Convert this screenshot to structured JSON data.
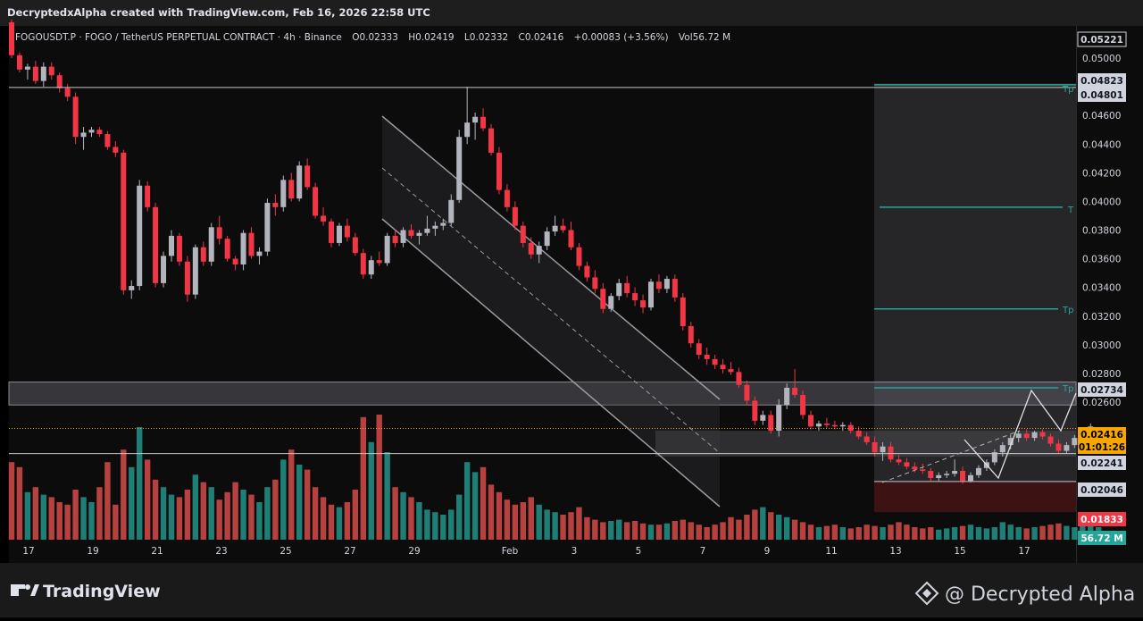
{
  "header": {
    "attribution": "DecryptedxAlpha created with TradingView.com, Feb 16, 2026 22:58 UTC"
  },
  "legend": {
    "symbol": "FOGOUSDT.P · FOGO / TetherUS PERPETUAL CONTRACT · 4h · Binance",
    "open": "O0.02333",
    "high": "H0.02419",
    "low": "L0.02332",
    "close": "C0.02416",
    "change": "+0.00083 (+3.56%)",
    "volume": "Vol56.72 M"
  },
  "footer": {
    "brand": "TradingView",
    "watermark": "@ Decrypted Alpha"
  },
  "drawing_labels": {
    "tp1": "Tp",
    "tp2": "Tp",
    "tp3": "T",
    "tp4": "Tp"
  },
  "chart_data": {
    "type": "candlestick",
    "symbol": "FOGOUSDT.P",
    "interval": "4h",
    "exchange": "Binance",
    "y_axis_ticks": [
      "0.05000",
      "0.04600",
      "0.04400",
      "0.04200",
      "0.04000",
      "0.03800",
      "0.03600",
      "0.03400",
      "0.03200",
      "0.03000",
      "0.02800",
      "0.02600"
    ],
    "x_axis_ticks": [
      "17",
      "19",
      "21",
      "23",
      "25",
      "27",
      "29",
      "Feb",
      "3",
      "5",
      "7",
      "9",
      "11",
      "13",
      "15",
      "17"
    ],
    "price_tags": [
      {
        "label": "0.05221",
        "style": "outline"
      },
      {
        "label": "0.04823",
        "style": "light"
      },
      {
        "label": "0.04801",
        "style": "light"
      },
      {
        "label": "0.02734",
        "style": "light"
      },
      {
        "label": "0.02416",
        "style": "current",
        "countdown": "01:01:26",
        "color": "#f7a600"
      },
      {
        "label": "0.02241",
        "style": "light"
      },
      {
        "label": "0.02046",
        "style": "light"
      },
      {
        "label": "0.01833",
        "style": "red",
        "color": "#f23645"
      },
      {
        "label": "56.72 M",
        "style": "volume",
        "color": "#26a69a"
      }
    ],
    "colors": {
      "up": "#b2b5be",
      "down": "#f23645",
      "vol_up": "#26a69a",
      "vol_down": "#ef5350",
      "target": "#26a69a"
    },
    "zones": [
      {
        "name": "resistance-zone",
        "from": 0.0258,
        "to": 0.0274
      },
      {
        "name": "support-zone",
        "from": 0.0222,
        "to": 0.024
      },
      {
        "name": "target-box",
        "from": 0.0204,
        "to": 0.04823
      },
      {
        "name": "stop-box",
        "from": 0.01833,
        "to": 0.02046
      }
    ],
    "levels": [
      {
        "name": "high-line",
        "price": 0.04801
      },
      {
        "name": "tp-level-1",
        "price": 0.04801
      },
      {
        "name": "tp-level-2",
        "price": 0.0396
      },
      {
        "name": "tp-level-3",
        "price": 0.0325
      },
      {
        "name": "tp-level-4",
        "price": 0.027
      },
      {
        "name": "current-price",
        "price": 0.02416
      },
      {
        "name": "support-line",
        "price": 0.02241
      },
      {
        "name": "entry-line",
        "price": 0.02046
      }
    ],
    "candles": [
      [
        0.0525,
        0.0527,
        0.05,
        0.0502
      ],
      [
        0.0502,
        0.0504,
        0.049,
        0.0492
      ],
      [
        0.0492,
        0.0496,
        0.0485,
        0.0494
      ],
      [
        0.0494,
        0.0498,
        0.0482,
        0.0484
      ],
      [
        0.0484,
        0.0497,
        0.048,
        0.0494
      ],
      [
        0.0494,
        0.0497,
        0.0485,
        0.0488
      ],
      [
        0.0488,
        0.049,
        0.0476,
        0.0479
      ],
      [
        0.0479,
        0.0482,
        0.047,
        0.0473
      ],
      [
        0.0473,
        0.0476,
        0.044,
        0.0445
      ],
      [
        0.0445,
        0.0452,
        0.0436,
        0.0448
      ],
      [
        0.0448,
        0.0452,
        0.0445,
        0.045
      ],
      [
        0.045,
        0.0452,
        0.0445,
        0.0447
      ],
      [
        0.0447,
        0.0449,
        0.0436,
        0.0438
      ],
      [
        0.0438,
        0.0442,
        0.0431,
        0.0434
      ],
      [
        0.0434,
        0.0436,
        0.0335,
        0.0338
      ],
      [
        0.0338,
        0.0345,
        0.0332,
        0.0341
      ],
      [
        0.0341,
        0.0415,
        0.0338,
        0.0411
      ],
      [
        0.0411,
        0.0414,
        0.0393,
        0.0396
      ],
      [
        0.0396,
        0.0399,
        0.034,
        0.0343
      ],
      [
        0.0343,
        0.0365,
        0.034,
        0.0362
      ],
      [
        0.0362,
        0.038,
        0.0358,
        0.0376
      ],
      [
        0.0376,
        0.0378,
        0.0355,
        0.0358
      ],
      [
        0.0358,
        0.0362,
        0.033,
        0.0335
      ],
      [
        0.0335,
        0.037,
        0.0332,
        0.0368
      ],
      [
        0.0368,
        0.0372,
        0.0355,
        0.0358
      ],
      [
        0.0358,
        0.0385,
        0.0355,
        0.0382
      ],
      [
        0.0382,
        0.039,
        0.037,
        0.0374
      ],
      [
        0.0374,
        0.0376,
        0.0358,
        0.036
      ],
      [
        0.036,
        0.0362,
        0.0352,
        0.0356
      ],
      [
        0.0356,
        0.038,
        0.0352,
        0.0378
      ],
      [
        0.0378,
        0.0382,
        0.036,
        0.0362
      ],
      [
        0.0362,
        0.0368,
        0.0356,
        0.0365
      ],
      [
        0.0365,
        0.0402,
        0.0362,
        0.0399
      ],
      [
        0.0399,
        0.0405,
        0.039,
        0.0396
      ],
      [
        0.0396,
        0.0418,
        0.0393,
        0.0415
      ],
      [
        0.0415,
        0.042,
        0.04,
        0.0402
      ],
      [
        0.0402,
        0.0428,
        0.04,
        0.0425
      ],
      [
        0.0425,
        0.043,
        0.0408,
        0.041
      ],
      [
        0.041,
        0.0413,
        0.0388,
        0.039
      ],
      [
        0.039,
        0.0396,
        0.0383,
        0.0386
      ],
      [
        0.0386,
        0.0388,
        0.0368,
        0.0371
      ],
      [
        0.0371,
        0.0385,
        0.0369,
        0.0383
      ],
      [
        0.0383,
        0.0388,
        0.0372,
        0.0375
      ],
      [
        0.0375,
        0.0378,
        0.0362,
        0.0364
      ],
      [
        0.0364,
        0.0367,
        0.0346,
        0.0349
      ],
      [
        0.0349,
        0.0362,
        0.0346,
        0.0359
      ],
      [
        0.0359,
        0.0365,
        0.0355,
        0.0357
      ],
      [
        0.0357,
        0.0378,
        0.0355,
        0.0376
      ],
      [
        0.0376,
        0.038,
        0.0368,
        0.0371
      ],
      [
        0.0371,
        0.0382,
        0.0368,
        0.038
      ],
      [
        0.038,
        0.0384,
        0.0374,
        0.0376
      ],
      [
        0.0376,
        0.038,
        0.037,
        0.0378
      ],
      [
        0.0378,
        0.039,
        0.0376,
        0.0381
      ],
      [
        0.0381,
        0.0386,
        0.0376,
        0.0383
      ],
      [
        0.0383,
        0.0388,
        0.038,
        0.0385
      ],
      [
        0.0385,
        0.0405,
        0.0383,
        0.0401
      ],
      [
        0.0401,
        0.045,
        0.0399,
        0.0445
      ],
      [
        0.0445,
        0.048,
        0.044,
        0.0455
      ],
      [
        0.0455,
        0.0462,
        0.0443,
        0.0459
      ],
      [
        0.0459,
        0.0465,
        0.0449,
        0.0451
      ],
      [
        0.0451,
        0.0454,
        0.0432,
        0.0434
      ],
      [
        0.0434,
        0.0438,
        0.0405,
        0.0408
      ],
      [
        0.0408,
        0.0412,
        0.0393,
        0.0396
      ],
      [
        0.0396,
        0.04,
        0.038,
        0.0383
      ],
      [
        0.0383,
        0.0386,
        0.0368,
        0.0371
      ],
      [
        0.0371,
        0.0375,
        0.036,
        0.0363
      ],
      [
        0.0363,
        0.0372,
        0.0357,
        0.0369
      ],
      [
        0.0369,
        0.0382,
        0.0366,
        0.0379
      ],
      [
        0.0379,
        0.039,
        0.0376,
        0.0383
      ],
      [
        0.0383,
        0.0388,
        0.0378,
        0.038
      ],
      [
        0.038,
        0.0386,
        0.0366,
        0.0368
      ],
      [
        0.0368,
        0.0371,
        0.0352,
        0.0355
      ],
      [
        0.0355,
        0.0358,
        0.0344,
        0.0347
      ],
      [
        0.0347,
        0.0352,
        0.0336,
        0.0339
      ],
      [
        0.0339,
        0.0343,
        0.0322,
        0.0325
      ],
      [
        0.0325,
        0.0336,
        0.0323,
        0.0334
      ],
      [
        0.0334,
        0.0346,
        0.0331,
        0.0343
      ],
      [
        0.0343,
        0.0348,
        0.0333,
        0.0336
      ],
      [
        0.0336,
        0.034,
        0.0327,
        0.0331
      ],
      [
        0.0331,
        0.0335,
        0.0322,
        0.0326
      ],
      [
        0.0326,
        0.0346,
        0.0324,
        0.0344
      ],
      [
        0.0344,
        0.0349,
        0.0336,
        0.0339
      ],
      [
        0.0339,
        0.0348,
        0.0336,
        0.0346
      ],
      [
        0.0346,
        0.0349,
        0.033,
        0.0333
      ],
      [
        0.0333,
        0.0336,
        0.031,
        0.0313
      ],
      [
        0.0313,
        0.0316,
        0.0298,
        0.0301
      ],
      [
        0.0301,
        0.0304,
        0.029,
        0.0293
      ],
      [
        0.0293,
        0.0298,
        0.0286,
        0.029
      ],
      [
        0.029,
        0.0293,
        0.0283,
        0.0286
      ],
      [
        0.0286,
        0.029,
        0.028,
        0.0283
      ],
      [
        0.0283,
        0.0288,
        0.0279,
        0.0281
      ],
      [
        0.0281,
        0.0284,
        0.027,
        0.0272
      ],
      [
        0.0272,
        0.0275,
        0.0258,
        0.0261
      ],
      [
        0.0261,
        0.0264,
        0.0244,
        0.0247
      ],
      [
        0.0247,
        0.0254,
        0.0244,
        0.0251
      ],
      [
        0.0251,
        0.0254,
        0.0238,
        0.024
      ],
      [
        0.024,
        0.0262,
        0.0236,
        0.0258
      ],
      [
        0.0258,
        0.0273,
        0.0255,
        0.027
      ],
      [
        0.027,
        0.0283,
        0.0263,
        0.0265
      ],
      [
        0.0265,
        0.0268,
        0.0248,
        0.0251
      ],
      [
        0.0251,
        0.0254,
        0.0241,
        0.0243
      ],
      [
        0.0243,
        0.0247,
        0.024,
        0.0245
      ],
      [
        0.0245,
        0.0249,
        0.0242,
        0.0244
      ],
      [
        0.0244,
        0.0247,
        0.0241,
        0.0243
      ],
      [
        0.0243,
        0.0246,
        0.024,
        0.0244
      ],
      [
        0.0244,
        0.0246,
        0.0238,
        0.024
      ],
      [
        0.024,
        0.0243,
        0.0234,
        0.0236
      ],
      [
        0.0236,
        0.0239,
        0.023,
        0.0232
      ],
      [
        0.0232,
        0.0236,
        0.0222,
        0.0225
      ],
      [
        0.0225,
        0.0232,
        0.0219,
        0.0229
      ],
      [
        0.0229,
        0.0232,
        0.0218,
        0.022
      ],
      [
        0.022,
        0.0223,
        0.0216,
        0.0218
      ],
      [
        0.0218,
        0.0221,
        0.0213,
        0.0215
      ],
      [
        0.0215,
        0.0218,
        0.0211,
        0.0213
      ],
      [
        0.0213,
        0.0217,
        0.021,
        0.0212
      ],
      [
        0.0212,
        0.0214,
        0.0205,
        0.0207
      ],
      [
        0.0207,
        0.0211,
        0.0205,
        0.0209
      ],
      [
        0.0209,
        0.0212,
        0.0207,
        0.021
      ],
      [
        0.021,
        0.022,
        0.0208,
        0.0212
      ],
      [
        0.0212,
        0.0215,
        0.0203,
        0.0205
      ],
      [
        0.0205,
        0.0211,
        0.0204,
        0.0209
      ],
      [
        0.0209,
        0.0216,
        0.0207,
        0.0214
      ],
      [
        0.0214,
        0.022,
        0.0212,
        0.0218
      ],
      [
        0.0218,
        0.0227,
        0.0216,
        0.0225
      ],
      [
        0.0225,
        0.0232,
        0.0222,
        0.023
      ],
      [
        0.023,
        0.0237,
        0.0227,
        0.0235
      ],
      [
        0.0235,
        0.024,
        0.0232,
        0.0238
      ],
      [
        0.0238,
        0.0241,
        0.0233,
        0.0235
      ],
      [
        0.0235,
        0.024,
        0.0233,
        0.0239
      ],
      [
        0.0239,
        0.0241,
        0.0234,
        0.0236
      ],
      [
        0.0236,
        0.0238,
        0.0229,
        0.0231
      ],
      [
        0.0231,
        0.0234,
        0.0224,
        0.0226
      ],
      [
        0.0226,
        0.0232,
        0.0224,
        0.023
      ],
      [
        0.023,
        0.0237,
        0.0228,
        0.0235
      ],
      [
        0.0235,
        0.0242,
        0.0233,
        0.024
      ],
      [
        0.024,
        0.0245,
        0.0238,
        0.0243
      ],
      [
        0.0233,
        0.0242,
        0.0233,
        0.0242
      ]
    ],
    "volumes": [
      0.62,
      0.58,
      0.38,
      0.42,
      0.36,
      0.34,
      0.3,
      0.28,
      0.4,
      0.34,
      0.3,
      0.42,
      0.62,
      0.28,
      0.72,
      0.58,
      0.9,
      0.64,
      0.48,
      0.42,
      0.36,
      0.34,
      0.4,
      0.52,
      0.46,
      0.42,
      0.32,
      0.38,
      0.46,
      0.4,
      0.36,
      0.3,
      0.42,
      0.48,
      0.64,
      0.72,
      0.6,
      0.56,
      0.42,
      0.34,
      0.28,
      0.26,
      0.3,
      0.4,
      0.98,
      0.78,
      1.0,
      0.7,
      0.42,
      0.38,
      0.34,
      0.3,
      0.24,
      0.22,
      0.2,
      0.24,
      0.36,
      0.62,
      0.54,
      0.58,
      0.44,
      0.38,
      0.32,
      0.28,
      0.3,
      0.34,
      0.28,
      0.24,
      0.22,
      0.2,
      0.22,
      0.26,
      0.18,
      0.16,
      0.14,
      0.15,
      0.16,
      0.14,
      0.15,
      0.13,
      0.12,
      0.12,
      0.13,
      0.15,
      0.16,
      0.14,
      0.12,
      0.1,
      0.12,
      0.14,
      0.18,
      0.16,
      0.2,
      0.24,
      0.26,
      0.22,
      0.2,
      0.18,
      0.16,
      0.14,
      0.12,
      0.1,
      0.11,
      0.12,
      0.1,
      0.09,
      0.1,
      0.12,
      0.11,
      0.1,
      0.12,
      0.14,
      0.12,
      0.1,
      0.09,
      0.1,
      0.08,
      0.09,
      0.1,
      0.11,
      0.12,
      0.1,
      0.09,
      0.1,
      0.14,
      0.12,
      0.1,
      0.09,
      0.1,
      0.11,
      0.12,
      0.13,
      0.11,
      0.1,
      0.12,
      0.14,
      0.1
    ]
  }
}
